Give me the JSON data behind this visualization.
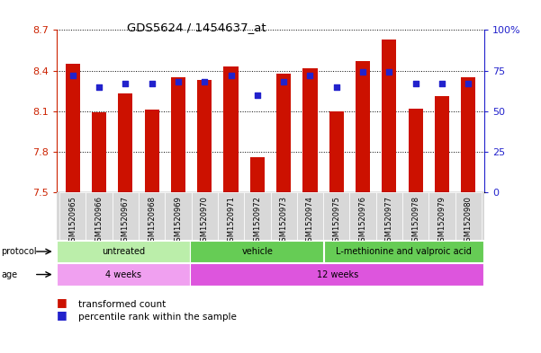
{
  "title": "GDS5624 / 1454637_at",
  "samples": [
    "GSM1520965",
    "GSM1520966",
    "GSM1520967",
    "GSM1520968",
    "GSM1520969",
    "GSM1520970",
    "GSM1520971",
    "GSM1520972",
    "GSM1520973",
    "GSM1520974",
    "GSM1520975",
    "GSM1520976",
    "GSM1520977",
    "GSM1520978",
    "GSM1520979",
    "GSM1520980"
  ],
  "transformed_counts": [
    8.45,
    8.09,
    8.23,
    8.11,
    8.35,
    8.33,
    8.43,
    7.76,
    8.38,
    8.42,
    8.1,
    8.47,
    8.63,
    8.12,
    8.21,
    8.35
  ],
  "percentile_ranks": [
    72,
    65,
    67,
    67,
    68,
    68,
    72,
    60,
    68,
    72,
    65,
    74,
    74,
    67,
    67,
    67
  ],
  "ylim_left": [
    7.5,
    8.7
  ],
  "ylim_right": [
    0,
    100
  ],
  "yticks_left": [
    7.5,
    7.8,
    8.1,
    8.4,
    8.7
  ],
  "yticks_right": [
    0,
    25,
    50,
    75,
    100
  ],
  "ytick_right_labels": [
    "0",
    "25",
    "50",
    "75",
    "100%"
  ],
  "bar_color": "#cc1100",
  "dot_color": "#2222cc",
  "bar_bottom": 7.5,
  "prot_groups": [
    {
      "label": "untreated",
      "start": 0,
      "end": 5,
      "color": "#bbeeaa"
    },
    {
      "label": "vehicle",
      "start": 5,
      "end": 10,
      "color": "#66cc55"
    },
    {
      "label": "L-methionine and valproic acid",
      "start": 10,
      "end": 16,
      "color": "#66cc55"
    }
  ],
  "age_groups": [
    {
      "label": "4 weeks",
      "start": 0,
      "end": 5,
      "color": "#f0a0f0"
    },
    {
      "label": "12 weeks",
      "start": 5,
      "end": 16,
      "color": "#dd55dd"
    }
  ],
  "legend_items": [
    {
      "color": "#cc1100",
      "label": "transformed count"
    },
    {
      "color": "#2222cc",
      "label": "percentile rank within the sample"
    }
  ]
}
